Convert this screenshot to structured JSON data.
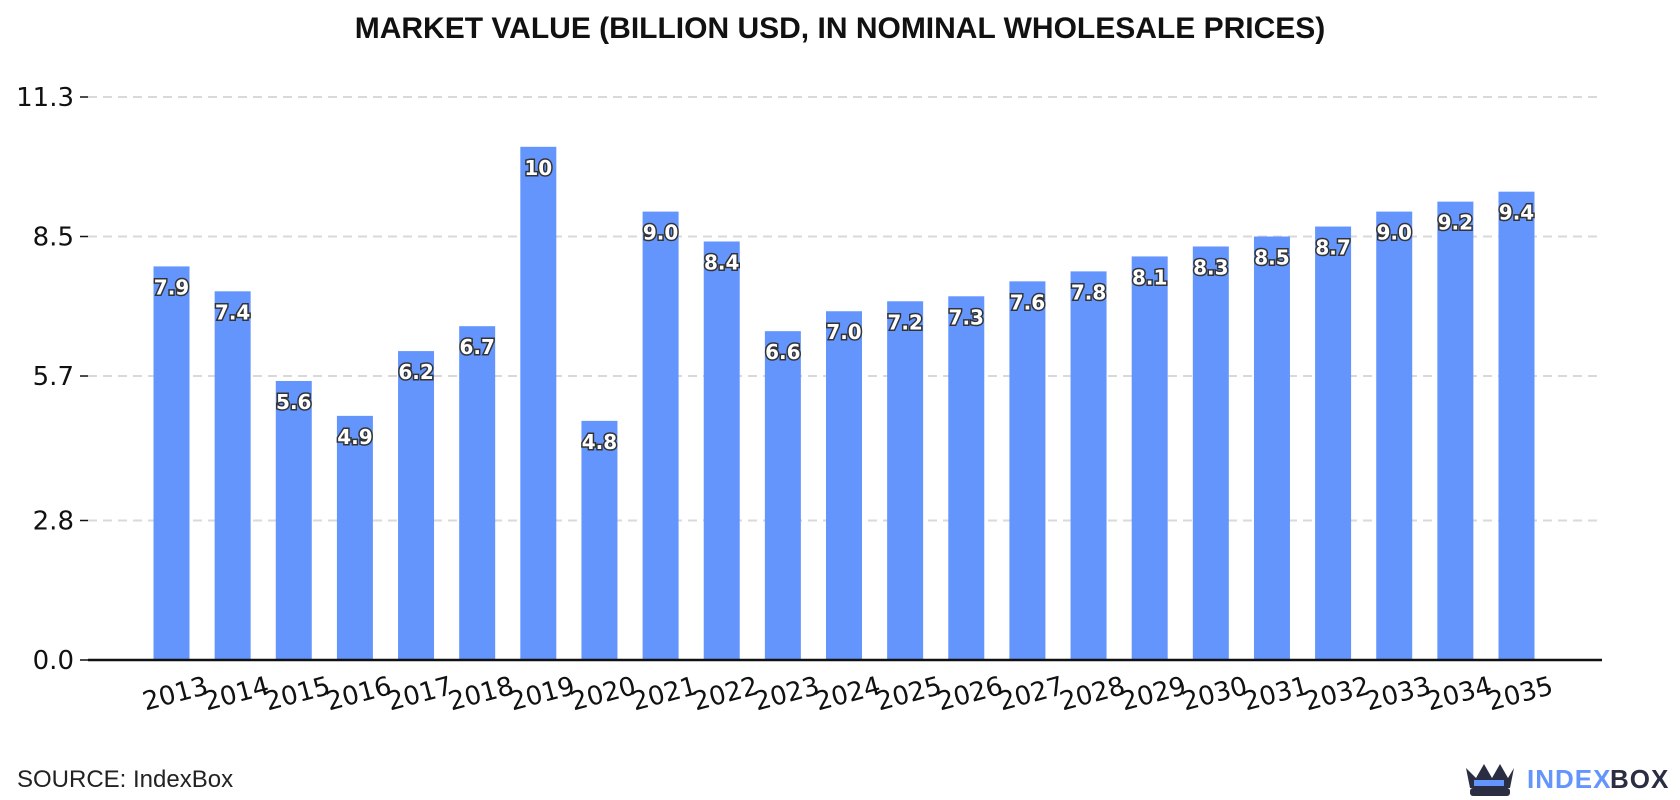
{
  "chart_data": {
    "type": "bar",
    "title": "MARKET VALUE (BILLION USD, IN NOMINAL WHOLESALE PRICES)",
    "xlabel": "",
    "ylabel": "",
    "categories": [
      "2013",
      "2014",
      "2015",
      "2016",
      "2017",
      "2018",
      "2019",
      "2020",
      "2021",
      "2022",
      "2023",
      "2024",
      "2025",
      "2026",
      "2027",
      "2028",
      "2029",
      "2030",
      "2031",
      "2032",
      "2033",
      "2034",
      "2035"
    ],
    "values": [
      7.9,
      7.4,
      5.6,
      4.9,
      6.2,
      6.7,
      10.3,
      4.8,
      9.0,
      8.4,
      6.6,
      7.0,
      7.2,
      7.3,
      7.6,
      7.8,
      8.1,
      8.3,
      8.5,
      8.7,
      9.0,
      9.2,
      9.4
    ],
    "value_labels": [
      "7.9",
      "7.4",
      "5.6",
      "4.9",
      "6.2",
      "6.7",
      "10",
      "4.8",
      "9.0",
      "8.4",
      "6.6",
      "7.0",
      "7.2",
      "7.3",
      "7.6",
      "7.8",
      "8.1",
      "8.3",
      "8.5",
      "8.7",
      "9.0",
      "9.2",
      "9.4"
    ],
    "ylim": [
      0,
      11.3
    ],
    "yticks": [
      0.0,
      2.8,
      5.7,
      8.5,
      11.3
    ],
    "ytick_labels": [
      "0.0",
      "2.8",
      "5.7",
      "8.5",
      "11.3"
    ],
    "grid": true,
    "bar_color": "#6495fc"
  },
  "source": "SOURCE: IndexBox",
  "logo": {
    "part1": "INDEX",
    "part2": "BOX",
    "color1": "#6495fc",
    "color2": "#2b2d42"
  }
}
